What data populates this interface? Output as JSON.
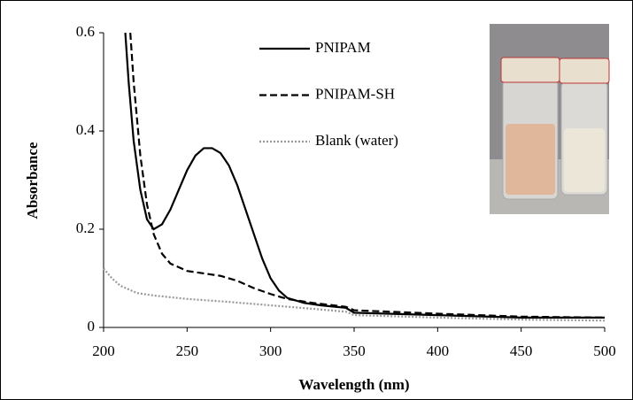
{
  "chart_data": {
    "type": "line",
    "x_label": "Wavelength (nm)",
    "y_label": "Absorbance",
    "xlim": [
      200,
      500
    ],
    "xticks": [
      200,
      250,
      300,
      350,
      400,
      450,
      500
    ],
    "ylim": [
      0,
      0.6
    ],
    "yticks": [
      0,
      0.2,
      0.4,
      0.6
    ],
    "series": [
      {
        "name": "PNIPAM",
        "color": "#000000",
        "dash": "solid",
        "x": [
          213,
          215,
          218,
          222,
          226,
          230,
          235,
          240,
          245,
          250,
          255,
          260,
          265,
          270,
          275,
          280,
          285,
          290,
          295,
          300,
          305,
          310,
          320,
          330,
          345,
          350,
          400,
          450,
          500
        ],
        "values": [
          0.6,
          0.5,
          0.38,
          0.28,
          0.22,
          0.2,
          0.21,
          0.24,
          0.28,
          0.32,
          0.35,
          0.365,
          0.365,
          0.355,
          0.33,
          0.29,
          0.24,
          0.19,
          0.14,
          0.1,
          0.075,
          0.06,
          0.05,
          0.045,
          0.04,
          0.03,
          0.025,
          0.02,
          0.02
        ]
      },
      {
        "name": "PNIPAM-SH",
        "color": "#000000",
        "dash": "dashed",
        "x": [
          216,
          218,
          222,
          226,
          230,
          235,
          240,
          250,
          260,
          270,
          280,
          290,
          300,
          310,
          325,
          345,
          350,
          400,
          450,
          500
        ],
        "values": [
          0.6,
          0.5,
          0.35,
          0.25,
          0.19,
          0.15,
          0.13,
          0.115,
          0.11,
          0.105,
          0.095,
          0.08,
          0.068,
          0.058,
          0.05,
          0.042,
          0.035,
          0.028,
          0.022,
          0.02
        ]
      },
      {
        "name": "Blank (water)",
        "color": "#999999",
        "dash": "dotted",
        "x": [
          200,
          205,
          210,
          220,
          230,
          250,
          275,
          300,
          325,
          345,
          350,
          400,
          450,
          500
        ],
        "values": [
          0.12,
          0.1,
          0.085,
          0.07,
          0.065,
          0.058,
          0.052,
          0.045,
          0.038,
          0.032,
          0.025,
          0.02,
          0.016,
          0.014
        ]
      }
    ]
  }
}
